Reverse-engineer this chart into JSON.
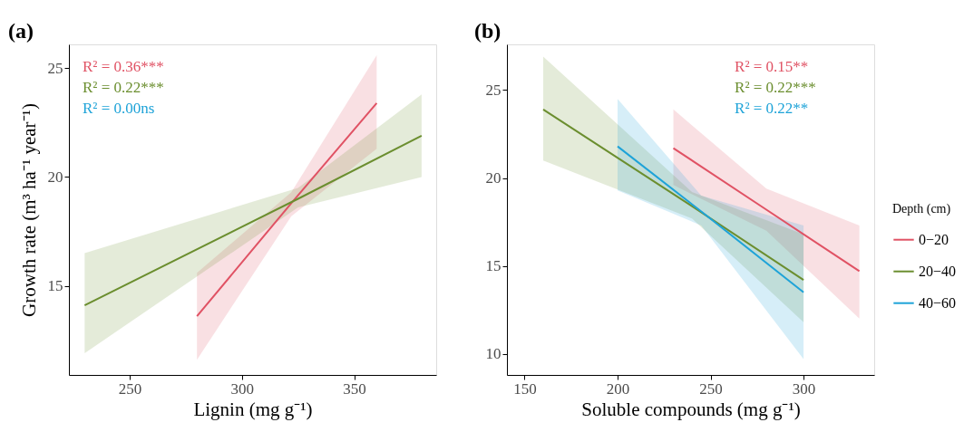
{
  "chart_data": [
    {
      "type": "line",
      "title": "(a)",
      "xlabel": "Lignin (mg g⁻¹)",
      "ylabel": "Growth rate (m³ ha⁻¹ year⁻¹)",
      "xlim": [
        223,
        386.5
      ],
      "xticks": [
        250,
        300,
        350
      ],
      "ylim": [
        10.9,
        26.1
      ],
      "yticks": [
        15,
        20,
        25
      ],
      "grid": false,
      "legend": false,
      "annotations": [
        "R² = 0.36***",
        "R² = 0.22***",
        "R² = 0.00ns"
      ],
      "series": [
        {
          "color": "#e05264",
          "x": [
            280,
            322,
            360
          ],
          "values": [
            13.6,
            18.8,
            23.4
          ],
          "lower": [
            11.6,
            18.2,
            21.3
          ],
          "upper": [
            15.6,
            19.3,
            25.6
          ]
        },
        {
          "color": "#6b8e2f",
          "x": [
            230,
            325,
            380
          ],
          "values": [
            14.1,
            19.0,
            21.9
          ],
          "lower": [
            11.9,
            18.6,
            20.0
          ],
          "upper": [
            16.5,
            19.5,
            23.8
          ]
        }
      ]
    },
    {
      "type": "line",
      "title": "(b)",
      "xlabel": "Soluble compounds (mg g⁻¹)",
      "legend_title": "Depth (cm)",
      "xlim": [
        140.5,
        338
      ],
      "xticks": [
        150,
        200,
        250,
        300
      ],
      "ylim": [
        8.8,
        27.6
      ],
      "yticks": [
        10,
        15,
        20,
        25
      ],
      "grid": false,
      "legend": "right",
      "annotations": [
        "R² = 0.15**",
        "R² = 0.22***",
        "R² = 0.22**"
      ],
      "series": [
        {
          "name": "0−20",
          "color": "#e05264",
          "x": [
            230,
            280,
            330
          ],
          "values": [
            21.7,
            18.2,
            14.7
          ],
          "lower": [
            19.6,
            17.0,
            12.0
          ],
          "upper": [
            23.9,
            19.4,
            17.3
          ]
        },
        {
          "name": "20−40",
          "color": "#6b8e2f",
          "x": [
            160,
            240,
            300
          ],
          "values": [
            23.9,
            18.4,
            14.2
          ],
          "lower": [
            21.0,
            17.7,
            11.8
          ],
          "upper": [
            26.9,
            19.2,
            16.8
          ]
        },
        {
          "name": "40−60",
          "color": "#1ea3d8",
          "x": [
            200,
            245,
            300
          ],
          "values": [
            21.8,
            18.1,
            13.5
          ],
          "lower": [
            19.3,
            17.3,
            9.7
          ],
          "upper": [
            24.5,
            19.0,
            17.3
          ]
        }
      ]
    }
  ]
}
